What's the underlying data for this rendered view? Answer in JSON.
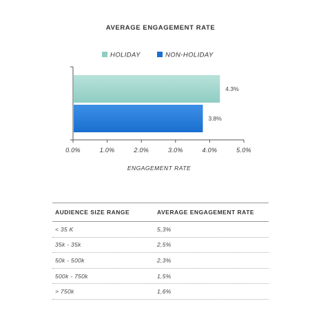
{
  "chart_data": {
    "type": "bar",
    "orientation": "horizontal",
    "title": "AVERAGE ENGAGEMENT RATE",
    "xlabel": "ENGAGEMENT RATE",
    "xlim": [
      0,
      5
    ],
    "xticks": [
      "0.0%",
      "1.0%",
      "2.0%",
      "3.0%",
      "4.0%",
      "5.0%"
    ],
    "legend_position": "top",
    "series": [
      {
        "name": "HOLIDAY",
        "value": 4.3,
        "label": "4.3%",
        "color": "#8fcdc3",
        "color_light": "#b8e2da"
      },
      {
        "name": "NON-HOLIDAY",
        "value": 3.8,
        "label": "3.8%",
        "color": "#1a6fcf",
        "color_light": "#3d8fe6"
      }
    ]
  },
  "table": {
    "headers": [
      "AUDIENCE SIZE RANGE",
      "AVERAGE ENGAGEMENT RATE"
    ],
    "rows": [
      [
        "< 35 K",
        "5,3%"
      ],
      [
        "35k - 35k",
        "2,5%"
      ],
      [
        "50k - 500k",
        "2,3%"
      ],
      [
        "500k - 750k",
        "1,5%"
      ],
      [
        "> 750k",
        "1,6%"
      ]
    ]
  }
}
